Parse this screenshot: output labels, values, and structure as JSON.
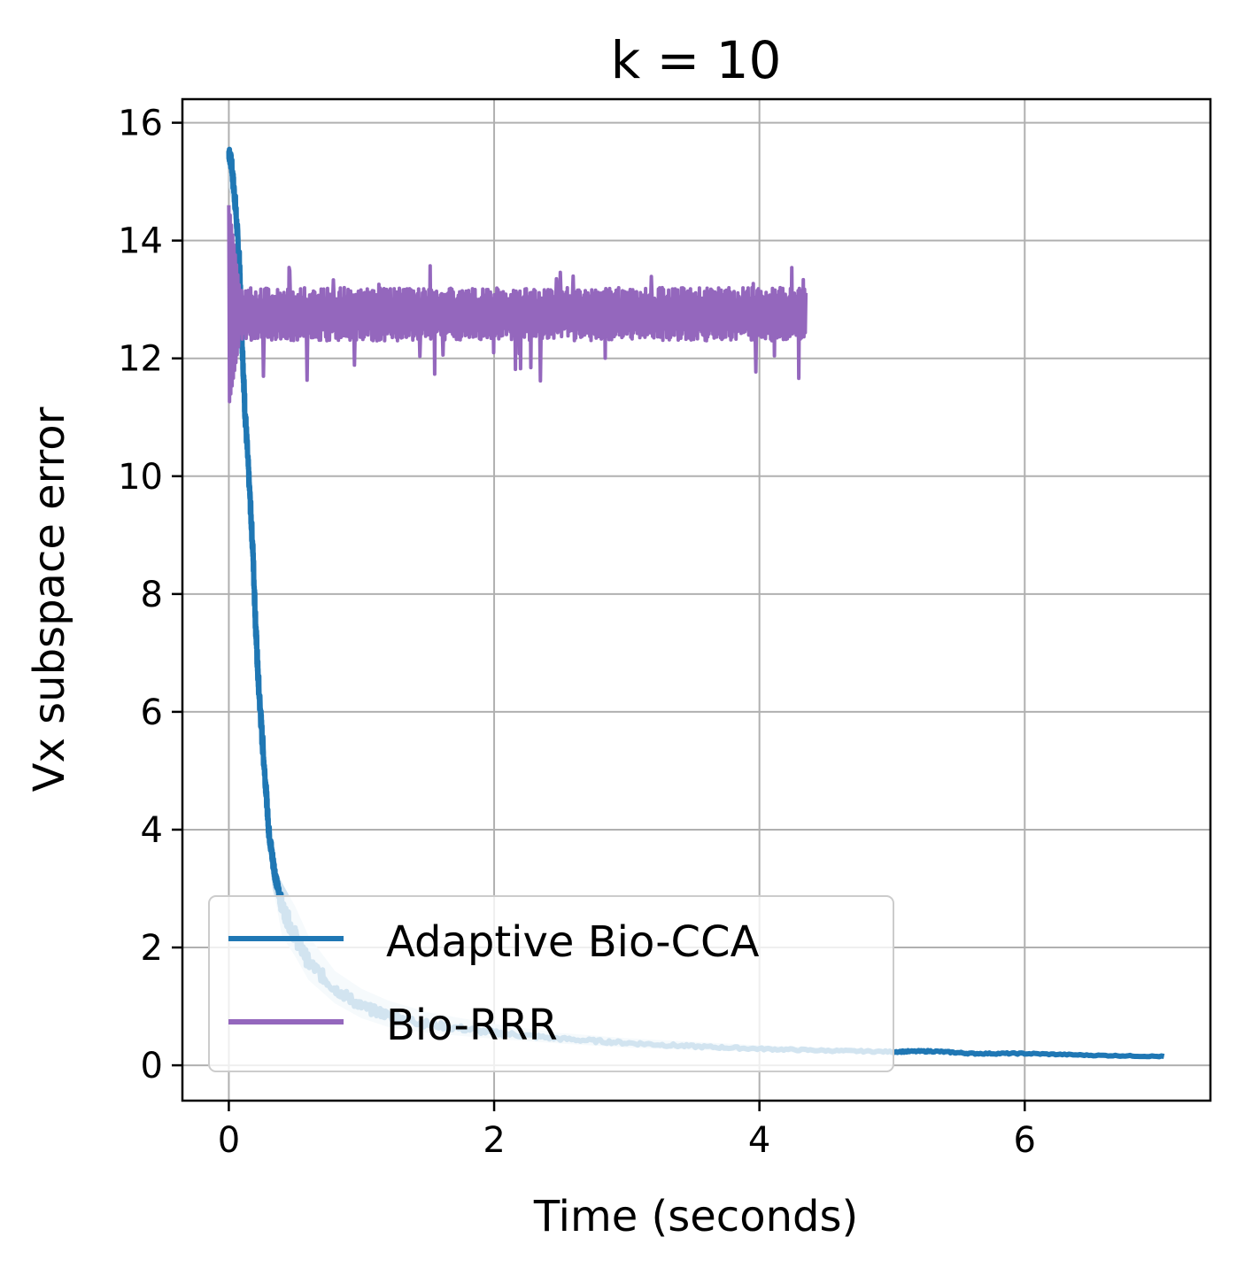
{
  "chart_data": {
    "type": "line",
    "title": "k = 10",
    "xlabel": "Time (seconds)",
    "ylabel": "Vx subspace error",
    "xlim": [
      -0.35,
      7.4
    ],
    "ylim": [
      -0.6,
      16.4
    ],
    "xticks": [
      0,
      2,
      4,
      6
    ],
    "yticks": [
      0,
      2,
      4,
      6,
      8,
      10,
      12,
      14,
      16
    ],
    "grid": true,
    "legend_position": "lower-left",
    "series": [
      {
        "name": "Adaptive Bio-CCA",
        "color": "#1f77b4",
        "shaded_region_color": "#d0e3f0",
        "x": [
          0,
          0.02,
          0.05,
          0.08,
          0.1,
          0.12,
          0.15,
          0.18,
          0.2,
          0.22,
          0.25,
          0.28,
          0.3,
          0.33,
          0.36,
          0.4,
          0.5,
          0.6,
          0.8,
          1.0,
          1.2,
          1.5,
          2.0,
          2.5,
          3.0,
          3.5,
          4.0,
          4.5,
          5.0,
          5.3,
          5.6,
          6.0,
          6.5,
          7.05
        ],
        "y": [
          15.5,
          15.3,
          14.6,
          13.6,
          12.3,
          11.2,
          10.0,
          8.8,
          7.6,
          6.6,
          5.6,
          4.7,
          4.0,
          3.5,
          3.1,
          2.7,
          2.2,
          1.75,
          1.3,
          1.0,
          0.85,
          0.7,
          0.55,
          0.45,
          0.38,
          0.32,
          0.28,
          0.25,
          0.23,
          0.24,
          0.2,
          0.2,
          0.17,
          0.15
        ],
        "values_min": [
          14.9,
          14.7,
          14.0,
          13.0,
          11.8,
          10.6,
          9.5,
          8.2,
          7.0,
          6.0,
          5.0,
          4.2,
          3.6,
          3.0,
          2.7,
          2.2,
          1.85,
          1.45,
          1.05,
          0.8,
          0.65,
          0.55,
          0.45,
          0.37,
          0.3,
          0.26,
          0.23,
          0.21,
          0.19,
          0.2,
          0.17,
          0.17,
          0.15,
          0.13
        ],
        "values_max": [
          15.6,
          15.5,
          15.0,
          14.1,
          12.9,
          11.8,
          10.4,
          9.3,
          8.3,
          7.3,
          6.2,
          5.1,
          4.4,
          3.9,
          3.3,
          3.1,
          2.7,
          2.2,
          1.6,
          1.3,
          1.1,
          0.9,
          0.7,
          0.55,
          0.46,
          0.4,
          0.34,
          0.3,
          0.27,
          0.28,
          0.24,
          0.24,
          0.2,
          0.18
        ]
      },
      {
        "name": "Bio-RRR",
        "color": "#9467bd",
        "x_start": 0,
        "x_end": 4.35,
        "center_value": 12.75,
        "band_min": 12.3,
        "band_max": 13.2,
        "initial_spike_max": 14.6,
        "initial_spike_min": 11.2,
        "outlier_min": 11.6,
        "outlier_max": 13.6
      }
    ]
  }
}
